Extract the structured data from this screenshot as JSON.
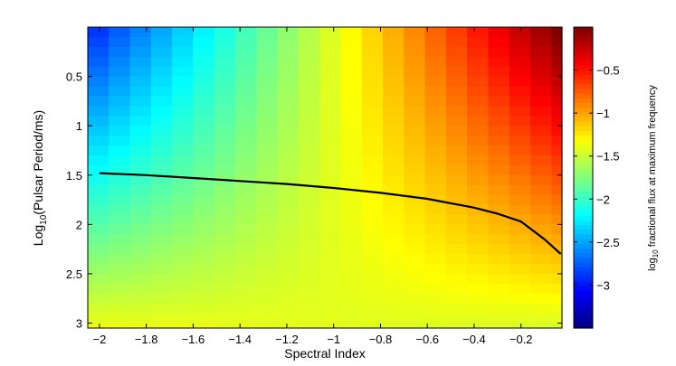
{
  "chart_data": {
    "type": "heatmap",
    "title": "",
    "xlabel": "Spectral Index",
    "ylabel_prefix": "Log",
    "ylabel_sub": "10",
    "ylabel_rest": "(Pulsar Period/ms)",
    "xlim": [
      -2.05,
      -0.025
    ],
    "ylim": [
      0.0,
      3.05
    ],
    "y_reversed": true,
    "x_ticks": [
      -2,
      -1.8,
      -1.6,
      -1.4,
      -1.2,
      -1,
      -0.8,
      -0.6,
      -0.4,
      -0.2
    ],
    "x_tick_labels": [
      "−2",
      "−1.8",
      "−1.6",
      "−1.4",
      "−1.2",
      "−1",
      "−0.8",
      "−0.6",
      "−0.4",
      "−0.2"
    ],
    "y_ticks": [
      0.5,
      1,
      1.5,
      2,
      2.5,
      3
    ],
    "y_tick_labels": [
      "0.5",
      "1",
      "1.5",
      "2",
      "2.5",
      "3"
    ],
    "grid": {
      "x_start": -2.05,
      "x_step": 0.09,
      "x_count": 23,
      "y_start": 0.0,
      "y_step": 0.1,
      "y_count": 31,
      "model": "z = 1.48*x + 0.07 - 0.5*y*(1+x)"
    },
    "series": [
      {
        "type": "line",
        "color": "#000000",
        "x": [
          -2.0,
          -1.8,
          -1.6,
          -1.4,
          -1.2,
          -1.0,
          -0.8,
          -0.6,
          -0.4,
          -0.3,
          -0.2,
          -0.1,
          -0.03
        ],
        "y": [
          1.48,
          1.5,
          1.53,
          1.56,
          1.59,
          1.63,
          1.68,
          1.74,
          1.83,
          1.89,
          1.97,
          2.15,
          2.3
        ]
      }
    ],
    "colorbar": {
      "label_prefix": "log",
      "label_sub": "10",
      "label_rest": " fractional flux at maximum frequency",
      "range": [
        -3.5,
        0.0
      ],
      "ticks": [
        -0.5,
        -1,
        -1.5,
        -2,
        -2.5,
        -3
      ],
      "tick_labels": [
        "−0.5",
        "−1",
        "−1.5",
        "−2",
        "−2.5",
        "−3"
      ],
      "colormap": "jet"
    }
  }
}
